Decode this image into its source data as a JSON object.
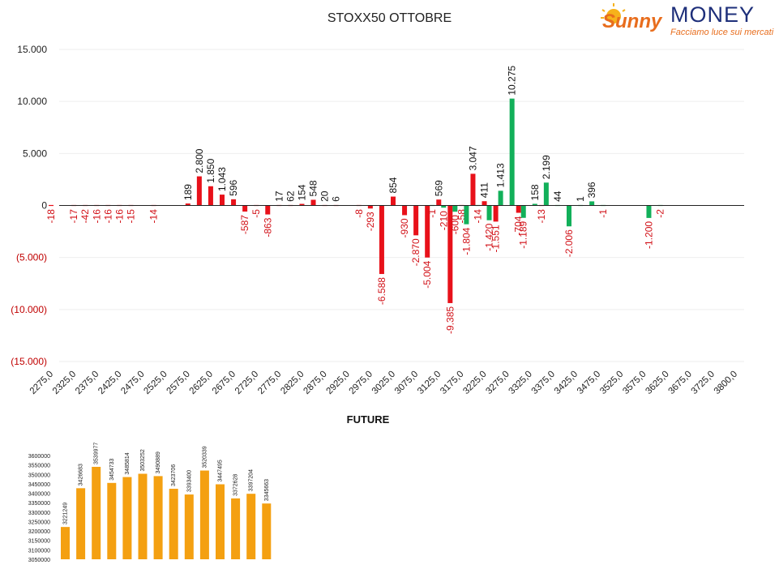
{
  "title": "STOXX50 OTTOBRE",
  "logo": {
    "brand_left": "Sunny",
    "brand_right": "MONEY",
    "tagline": "Facciamo luce sui mercati"
  },
  "colors": {
    "put": "#e8111a",
    "call": "#12b05a",
    "future": "#f4a011"
  },
  "chart_data": [
    {
      "type": "bar",
      "title": "STOXX50 OTTOBRE",
      "y_tick_labels": [
        "15.000",
        "10.000",
        "5.000",
        "0",
        "(5.000)",
        "(10.000)",
        "(15.000)"
      ],
      "y_tick_values": [
        15000,
        10000,
        5000,
        0,
        -5000,
        -10000,
        -15000
      ],
      "ylim": [
        -15000,
        15000
      ],
      "x_tick_labels": [
        "2275,0",
        "2325,0",
        "2375,0",
        "2425,0",
        "2475,0",
        "2525,0",
        "2575,0",
        "2625,0",
        "2675,0",
        "2725,0",
        "2775,0",
        "2825,0",
        "2875,0",
        "2925,0",
        "2975,0",
        "3025,0",
        "3075,0",
        "3125,0",
        "3175,0",
        "3225,0",
        "3275,0",
        "3325,0",
        "3375,0",
        "3425,0",
        "3475,0",
        "3525,0",
        "3575,0",
        "3625,0",
        "3675,0",
        "3725,0",
        "3800,0"
      ],
      "grid": true,
      "series": [
        {
          "color": "#e8111a",
          "points": [
            {
              "x": 2275,
              "y": -18,
              "label": "-18"
            },
            {
              "x": 2325,
              "y": -17,
              "label": "-17"
            },
            {
              "x": 2350,
              "y": -42,
              "label": "-42"
            },
            {
              "x": 2375,
              "y": -16,
              "label": "-16"
            },
            {
              "x": 2400,
              "y": -16,
              "label": "-16"
            },
            {
              "x": 2425,
              "y": -16,
              "label": "-16"
            },
            {
              "x": 2450,
              "y": -15,
              "label": "-15"
            },
            {
              "x": 2500,
              "y": -14,
              "label": "-14"
            },
            {
              "x": 2575,
              "y": 189,
              "label": "189"
            },
            {
              "x": 2600,
              "y": 2800,
              "label": "2.800"
            },
            {
              "x": 2625,
              "y": 1850,
              "label": "1.850"
            },
            {
              "x": 2650,
              "y": 1043,
              "label": "1.043"
            },
            {
              "x": 2675,
              "y": 596,
              "label": "596"
            },
            {
              "x": 2700,
              "y": -587,
              "label": "-587"
            },
            {
              "x": 2725,
              "y": -5,
              "label": "-5"
            },
            {
              "x": 2750,
              "y": -863,
              "label": "-863"
            },
            {
              "x": 2775,
              "y": 17,
              "label": "17"
            },
            {
              "x": 2800,
              "y": 62,
              "label": "62"
            },
            {
              "x": 2825,
              "y": 154,
              "label": "154"
            },
            {
              "x": 2850,
              "y": 548,
              "label": "548"
            },
            {
              "x": 2875,
              "y": 20,
              "label": "20"
            },
            {
              "x": 2900,
              "y": 6,
              "label": "6"
            },
            {
              "x": 2950,
              "y": -8,
              "label": "-8"
            },
            {
              "x": 2975,
              "y": -293,
              "label": "-293"
            },
            {
              "x": 3000,
              "y": -6588,
              "label": "-6.588"
            },
            {
              "x": 3025,
              "y": 854,
              "label": "854"
            },
            {
              "x": 3050,
              "y": -930,
              "label": "-930"
            },
            {
              "x": 3075,
              "y": -2870,
              "label": "-2.870"
            },
            {
              "x": 3100,
              "y": -5004,
              "label": "-5.004"
            },
            {
              "x": 3125,
              "y": 569,
              "label": "569"
            },
            {
              "x": 3150,
              "y": -9385,
              "label": "-9.385"
            },
            {
              "x": 3175,
              "y": -58,
              "label": "-58"
            },
            {
              "x": 3200,
              "y": 3047,
              "label": "3.047"
            },
            {
              "x": 3225,
              "y": 411,
              "label": "411"
            },
            {
              "x": 3250,
              "y": -1551,
              "label": "-1.551"
            },
            {
              "x": 3300,
              "y": -704,
              "label": "-704"
            },
            {
              "x": 3350,
              "y": -13,
              "label": "-13"
            }
          ]
        },
        {
          "color": "#12b05a",
          "points": [
            {
              "x": 3100,
              "y": -1,
              "label": "-1"
            },
            {
              "x": 3125,
              "y": -210,
              "label": "-210"
            },
            {
              "x": 3150,
              "y": -600,
              "label": "-600"
            },
            {
              "x": 3175,
              "y": -1804,
              "label": "-1.804"
            },
            {
              "x": 3200,
              "y": -14,
              "label": "-14"
            },
            {
              "x": 3225,
              "y": -1420,
              "label": "-1.420"
            },
            {
              "x": 3250,
              "y": 1413,
              "label": "1.413"
            },
            {
              "x": 3275,
              "y": 10275,
              "label": "10.275"
            },
            {
              "x": 3300,
              "y": -1189,
              "label": "-1.189"
            },
            {
              "x": 3325,
              "y": 158,
              "label": "158"
            },
            {
              "x": 3350,
              "y": 2199,
              "label": "2.199"
            },
            {
              "x": 3375,
              "y": 44,
              "label": "44"
            },
            {
              "x": 3400,
              "y": -2006,
              "label": "-2.006"
            },
            {
              "x": 3425,
              "y": 1,
              "label": "1"
            },
            {
              "x": 3450,
              "y": 396,
              "label": "396"
            },
            {
              "x": 3475,
              "y": -1,
              "label": "-1"
            },
            {
              "x": 3575,
              "y": -1200,
              "label": "-1.200"
            },
            {
              "x": 3600,
              "y": -2,
              "label": "-2"
            }
          ]
        }
      ]
    },
    {
      "type": "bar",
      "title": "FUTURE",
      "y_tick_labels": [
        "3600000",
        "3550000",
        "3500000",
        "3450000",
        "3400000",
        "3350000",
        "3300000",
        "3250000",
        "3200000",
        "3150000",
        "3100000",
        "3050000"
      ],
      "ylim": [
        3050000,
        3600000
      ],
      "values": [
        3221249,
        3426683,
        3539977,
        3454733,
        3485814,
        3503252,
        3490889,
        3423706,
        3393400,
        3520339,
        3447495,
        3372628,
        3397204,
        3345663
      ],
      "color": "#f4a011"
    }
  ]
}
